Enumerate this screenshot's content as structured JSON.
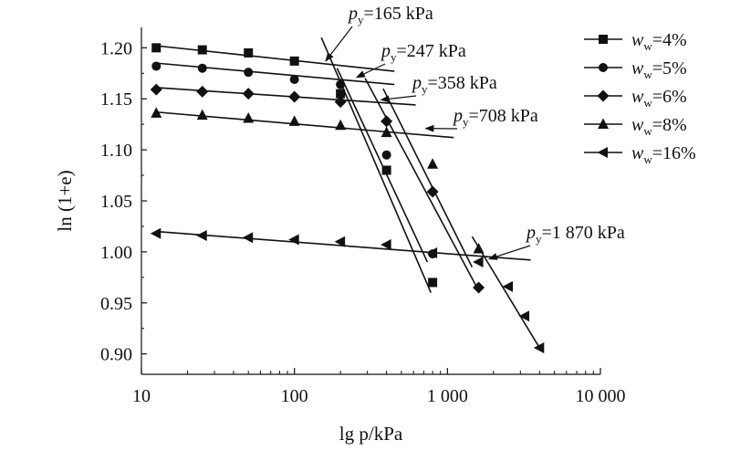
{
  "chart_data": {
    "type": "scatter",
    "title": "",
    "xlabel": "lg p/kPa",
    "ylabel": "ln (1+e)",
    "x_scale": "log",
    "xlim": [
      10,
      10000
    ],
    "ylim": [
      0.88,
      1.22
    ],
    "x_ticks": [
      10,
      100,
      1000,
      10000
    ],
    "x_tick_labels": [
      "10",
      "100",
      "1 000",
      "10 000"
    ],
    "y_ticks": [
      0.9,
      0.95,
      1.0,
      1.05,
      1.1,
      1.15,
      1.2
    ],
    "y_tick_labels": [
      "0.90",
      "0.95",
      "1.00",
      "1.05",
      "1.10",
      "1.15",
      "1.20"
    ],
    "grid": false,
    "legend_position": "top-right",
    "series": [
      {
        "name": "w_w=4%",
        "legend_label": "ww=4%",
        "marker": "square",
        "points": [
          [
            12.5,
            1.2
          ],
          [
            25,
            1.198
          ],
          [
            50,
            1.195
          ],
          [
            100,
            1.187
          ],
          [
            200,
            1.155
          ],
          [
            400,
            1.08
          ],
          [
            800,
            0.97
          ]
        ],
        "fit_lines": [
          [
            [
              12.5,
              1.202
            ],
            [
              450,
              1.177
            ]
          ],
          [
            [
              150,
              1.21
            ],
            [
              780,
              0.96
            ]
          ]
        ]
      },
      {
        "name": "w_w=5%",
        "legend_label": "ww=5%",
        "marker": "circle",
        "points": [
          [
            12.5,
            1.182
          ],
          [
            25,
            1.18
          ],
          [
            50,
            1.176
          ],
          [
            100,
            1.169
          ],
          [
            200,
            1.164
          ],
          [
            400,
            1.095
          ],
          [
            800,
            0.998
          ]
        ],
        "fit_lines": [
          [
            [
              12.5,
              1.185
            ],
            [
              450,
              1.164
            ]
          ],
          [
            [
              190,
              1.18
            ],
            [
              740,
              0.99
            ]
          ]
        ]
      },
      {
        "name": "w_w=6%",
        "legend_label": "ww=6%",
        "marker": "diamond",
        "points": [
          [
            12.5,
            1.159
          ],
          [
            25,
            1.157
          ],
          [
            50,
            1.155
          ],
          [
            100,
            1.152
          ],
          [
            200,
            1.147
          ],
          [
            400,
            1.128
          ],
          [
            800,
            1.059
          ],
          [
            1600,
            0.965
          ]
        ],
        "fit_lines": [
          [
            [
              12.5,
              1.161
            ],
            [
              620,
              1.144
            ]
          ],
          [
            [
              290,
              1.17
            ],
            [
              1600,
              0.962
            ]
          ]
        ]
      },
      {
        "name": "w_w=8%",
        "legend_label": "ww=8%",
        "marker": "triangle-up",
        "points": [
          [
            12.5,
            1.136
          ],
          [
            25,
            1.134
          ],
          [
            50,
            1.131
          ],
          [
            100,
            1.128
          ],
          [
            200,
            1.124
          ],
          [
            400,
            1.117
          ],
          [
            800,
            1.086
          ],
          [
            1600,
            1.003
          ]
        ],
        "fit_lines": [
          [
            [
              12.5,
              1.137
            ],
            [
              1100,
              1.112
            ]
          ],
          [
            [
              380,
              1.16
            ],
            [
              1450,
              0.985
            ]
          ]
        ]
      },
      {
        "name": "w_w=16%",
        "legend_label": "ww=16%",
        "marker": "triangle-left",
        "points": [
          [
            12.5,
            1.018
          ],
          [
            25,
            1.016
          ],
          [
            50,
            1.014
          ],
          [
            100,
            1.012
          ],
          [
            200,
            1.01
          ],
          [
            400,
            1.007
          ],
          [
            800,
            0.999
          ],
          [
            1600,
            0.99
          ],
          [
            2500,
            0.966
          ],
          [
            3200,
            0.937
          ],
          [
            4000,
            0.906
          ]
        ],
        "fit_lines": [
          [
            [
              12.5,
              1.02
            ],
            [
              3500,
              0.992
            ]
          ],
          [
            [
              1450,
              1.015
            ],
            [
              4000,
              0.906
            ]
          ]
        ]
      }
    ],
    "annotations": [
      {
        "id": "py-165",
        "value_label": "=165 kPa",
        "target": [
          160,
          1.187
        ]
      },
      {
        "id": "py-247",
        "value_label": "=247 kPa",
        "target": [
          255,
          1.171
        ]
      },
      {
        "id": "py-358",
        "value_label": "=358 kPa",
        "target": [
          368,
          1.149
        ]
      },
      {
        "id": "py-708",
        "value_label": "=708 kPa",
        "target": [
          720,
          1.121
        ]
      },
      {
        "id": "py-1870",
        "value_label": "=1 870 kPa",
        "target": [
          1870,
          0.993
        ]
      }
    ]
  }
}
